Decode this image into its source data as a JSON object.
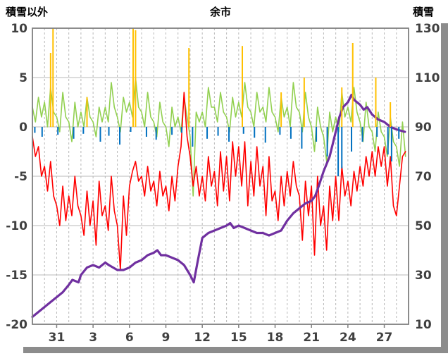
{
  "chart_data": {
    "type": "line",
    "title": "余市",
    "left_axis": {
      "label": "積雪以外",
      "min": -20,
      "max": 10,
      "ticks": [
        10,
        5,
        0,
        -5,
        -10,
        -15,
        -20
      ]
    },
    "right_axis": {
      "label": "積雪",
      "min": 10,
      "max": 130,
      "ticks": [
        130,
        110,
        90,
        70,
        50,
        30,
        10
      ]
    },
    "x_axis": {
      "tick_labels": [
        "31",
        "3",
        "6",
        "9",
        "12",
        "15",
        "18",
        "21",
        "24",
        "27"
      ],
      "tick_days": [
        2,
        5,
        8,
        11,
        14,
        17,
        20,
        23,
        26,
        29
      ],
      "domain_days": [
        0,
        31
      ],
      "grid": "dashed-daily"
    },
    "colors": {
      "grid": "#b8b8b8",
      "plot_border": "#7f7f7f",
      "axis_text": "#404040",
      "shadow": "#8c8c8c",
      "green": "#92d050",
      "red": "#ff0000",
      "purple": "#7030a0",
      "orange": "#ffc000",
      "blue": "#0070c0"
    },
    "series": [
      {
        "name": "green-line",
        "kind": "line",
        "axis": "left",
        "color": "#92d050",
        "step_days": 0.25,
        "values": [
          2.0,
          0.5,
          3.0,
          1.0,
          2.5,
          0.0,
          4.0,
          1.5,
          1.0,
          -0.5,
          3.5,
          1.0,
          0.5,
          -1.5,
          2.5,
          0.0,
          1.5,
          0.0,
          3.0,
          1.0,
          0.5,
          -1.0,
          2.0,
          0.5,
          2.0,
          0.5,
          4.5,
          2.0,
          1.0,
          -0.5,
          3.0,
          1.5,
          2.5,
          1.0,
          5.0,
          2.0,
          1.5,
          0.0,
          3.5,
          1.0,
          0.5,
          -1.0,
          2.5,
          0.5,
          0.0,
          -2.0,
          2.0,
          0.0,
          1.0,
          -0.5,
          3.0,
          1.0,
          -1.0,
          -7.0,
          1.5,
          0.5,
          1.5,
          0.0,
          4.0,
          2.0,
          2.0,
          0.5,
          3.5,
          1.5,
          1.0,
          -0.5,
          3.0,
          1.0,
          2.5,
          1.0,
          4.5,
          2.0,
          1.5,
          0.0,
          3.5,
          1.5,
          2.0,
          0.5,
          4.0,
          1.5,
          1.0,
          -0.5,
          3.0,
          1.0,
          2.0,
          0.0,
          4.5,
          2.0,
          1.5,
          -0.5,
          3.5,
          1.0,
          0.0,
          -2.5,
          2.0,
          0.0,
          -1.0,
          -3.5,
          1.5,
          -0.5,
          1.0,
          -0.5,
          3.5,
          1.0,
          2.0,
          0.5,
          4.0,
          1.5,
          0.5,
          -1.5,
          2.5,
          0.0,
          -0.5,
          -2.5,
          1.5,
          -0.5,
          -1.0,
          -3.0,
          1.0,
          -1.5,
          -2.0,
          -4.0,
          0.5,
          -3.0
        ]
      },
      {
        "name": "red-line",
        "kind": "line",
        "axis": "left",
        "color": "#ff0000",
        "step_days": 0.25,
        "values": [
          -1.0,
          -3.0,
          -2.0,
          -5.0,
          -4.0,
          -6.5,
          -3.5,
          -7.0,
          -8.0,
          -10.0,
          -6.0,
          -9.5,
          -7.0,
          -9.0,
          -5.0,
          -8.0,
          -9.0,
          -11.0,
          -6.5,
          -10.0,
          -7.5,
          -12.0,
          -5.5,
          -9.0,
          -8.0,
          -10.5,
          -5.0,
          -8.5,
          -10.0,
          -14.5,
          -7.0,
          -11.0,
          -6.0,
          -4.5,
          -3.5,
          -5.5,
          -5.0,
          -7.0,
          -4.0,
          -6.5,
          -5.5,
          -8.0,
          -4.5,
          -7.0,
          -6.0,
          -8.5,
          -5.0,
          -7.5,
          -4.0,
          -2.0,
          3.5,
          -1.0,
          -3.0,
          -6.0,
          -4.0,
          -7.0,
          -5.0,
          -7.5,
          -3.0,
          -6.0,
          -4.5,
          -8.0,
          -2.5,
          -6.5,
          -3.0,
          -7.5,
          -1.5,
          -5.0,
          -2.0,
          -6.0,
          -1.5,
          -8.0,
          -3.5,
          -7.0,
          -2.0,
          -6.0,
          -4.0,
          -9.0,
          -3.0,
          -7.5,
          -6.5,
          -9.5,
          -5.0,
          -8.0,
          -4.5,
          -7.0,
          -3.5,
          -6.0,
          -7.0,
          -11.5,
          -5.5,
          -9.0,
          -6.0,
          -13.0,
          -5.0,
          -10.0,
          -8.0,
          -12.5,
          -6.0,
          -9.5,
          -5.0,
          -9.5,
          -4.0,
          -7.0,
          -5.5,
          -8.0,
          -4.5,
          -6.5,
          -4.0,
          -6.0,
          -3.0,
          -5.0,
          -2.5,
          -5.0,
          -2.0,
          -4.0,
          -2.0,
          -6.0,
          -3.0,
          -8.0,
          -9.0,
          -6.0,
          -3.0,
          -2.5
        ]
      },
      {
        "name": "purple-snow-depth-line",
        "kind": "line",
        "axis": "right",
        "color": "#7030a0",
        "width": 3.2,
        "x": [
          0,
          0.5,
          1,
          1.5,
          2,
          2.5,
          3,
          3.3,
          3.8,
          4,
          4.5,
          5,
          5.5,
          6,
          6.3,
          7,
          7.5,
          8,
          8.5,
          9,
          9.5,
          10,
          10.3,
          10.6,
          11,
          11.5,
          12,
          12.5,
          13,
          13.3,
          13.6,
          14,
          14.5,
          15,
          15.5,
          16,
          16.3,
          16.6,
          17,
          17.5,
          18,
          18.5,
          19,
          19.5,
          20,
          20.5,
          21,
          21.5,
          22,
          22.5,
          23,
          23.3,
          23.6,
          24,
          24.5,
          25,
          25.3,
          25.6,
          26,
          26.3,
          26.5,
          27,
          27.3,
          27.6,
          28,
          28.5,
          29,
          29.5,
          30,
          30.7
        ],
        "values": [
          13,
          15,
          17,
          19,
          21,
          23,
          26,
          28,
          27,
          30,
          33,
          34,
          33,
          35,
          34,
          32,
          32,
          33,
          35,
          36,
          38,
          39,
          40,
          38,
          38,
          37,
          36,
          34,
          30,
          27,
          35,
          45,
          47,
          48,
          49,
          50,
          51,
          49,
          50,
          49,
          48,
          47,
          47,
          46,
          47,
          48,
          52,
          55,
          57,
          59,
          60,
          62,
          66,
          72,
          78,
          88,
          94,
          98,
          100,
          103,
          101,
          99,
          97,
          98,
          95,
          93,
          92,
          90,
          89,
          88
        ]
      },
      {
        "name": "orange-bars",
        "kind": "bar",
        "axis": "left",
        "color": "#ffc000",
        "points": [
          [
            1.5,
            7.5
          ],
          [
            1.7,
            10
          ],
          [
            4.5,
            3
          ],
          [
            8.3,
            10
          ],
          [
            8.5,
            9.8
          ],
          [
            12.9,
            8
          ],
          [
            17.3,
            8.2
          ],
          [
            20.5,
            3.5
          ],
          [
            22.4,
            5
          ],
          [
            25.5,
            4
          ],
          [
            26.4,
            8.5
          ],
          [
            28.3,
            5
          ],
          [
            29.5,
            2.5
          ]
        ]
      },
      {
        "name": "blue-bars",
        "kind": "bar",
        "axis": "left",
        "color": "#0070c0",
        "points": [
          [
            0.2,
            -0.6
          ],
          [
            0.8,
            -1.0
          ],
          [
            2.1,
            -0.8
          ],
          [
            3.4,
            -1.2
          ],
          [
            4.2,
            -0.7
          ],
          [
            5.6,
            -1.5
          ],
          [
            6.3,
            -0.9
          ],
          [
            7.2,
            -1.8
          ],
          [
            8.1,
            -0.5
          ],
          [
            9.4,
            -1.0
          ],
          [
            10.2,
            -1.3
          ],
          [
            11.5,
            -0.8
          ],
          [
            12.3,
            -0.6
          ],
          [
            13.2,
            -2.0
          ],
          [
            14.4,
            -1.2
          ],
          [
            15.3,
            -0.9
          ],
          [
            16.2,
            -1.5
          ],
          [
            17.4,
            -0.7
          ],
          [
            18.3,
            -1.1
          ],
          [
            19.2,
            -1.6
          ],
          [
            20.4,
            -0.8
          ],
          [
            21.3,
            -1.2
          ],
          [
            22.2,
            -2.2
          ],
          [
            23.4,
            -1.5
          ],
          [
            24.3,
            -3.0
          ],
          [
            25.2,
            -5.0
          ],
          [
            25.5,
            -4.2
          ],
          [
            26.3,
            -2.5
          ],
          [
            27.2,
            -1.5
          ],
          [
            28.4,
            -1.0
          ],
          [
            29.3,
            -2.8
          ],
          [
            29.6,
            -3.5
          ],
          [
            30.2,
            -1.2
          ]
        ]
      }
    ]
  }
}
